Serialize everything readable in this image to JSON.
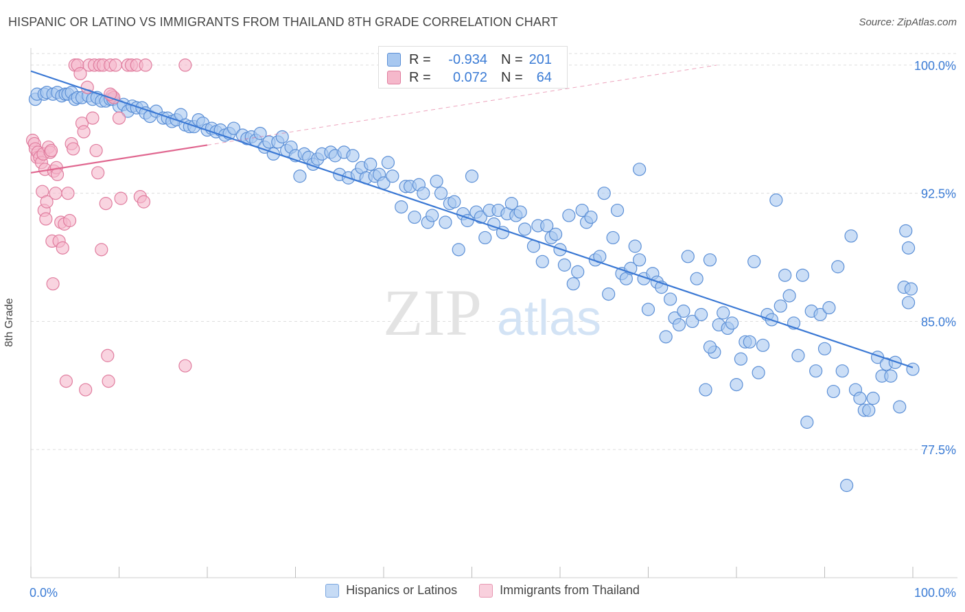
{
  "header": {
    "title": "HISPANIC OR LATINO VS IMMIGRANTS FROM THAILAND 8TH GRADE CORRELATION CHART",
    "source": "Source: ZipAtlas.com"
  },
  "watermark": {
    "zip": "ZIP",
    "atlas": "atlas"
  },
  "stats": {
    "rows": [
      {
        "r_label": "R =",
        "r_value": "-0.934",
        "n_label": "N =",
        "n_value": "201"
      },
      {
        "r_label": "R =",
        "r_value": "0.072",
        "n_label": "N =",
        "n_value": "64"
      }
    ]
  },
  "legend": {
    "items": [
      {
        "label": "Hispanics or Latinos"
      },
      {
        "label": "Immigrants from Thailand"
      }
    ]
  },
  "colors": {
    "blue_fill": "#a8c8f0",
    "blue_stroke": "#5b8fd6",
    "blue_line": "#3a78d4",
    "pink_fill": "#f5b8cb",
    "pink_stroke": "#e07c9e",
    "pink_line": "#e0668f",
    "grid": "#dddddd",
    "tick_label": "#3a7bd5"
  },
  "chart_data": {
    "type": "scatter",
    "title": "HISPANIC OR LATINO VS IMMIGRANTS FROM THAILAND 8TH GRADE CORRELATION CHART",
    "xlabel": "",
    "ylabel": "8th Grade",
    "xlim": [
      0,
      100
    ],
    "ylim": [
      70.0,
      101.0
    ],
    "x_tick_labels": [
      "0.0%",
      "100.0%"
    ],
    "y_ticks": [
      77.5,
      85.0,
      92.5,
      100.0
    ],
    "y_tick_labels": [
      "77.5%",
      "85.0%",
      "92.5%",
      "100.0%"
    ],
    "grid": true,
    "legend_position": "bottom",
    "series": [
      {
        "name": "Hispanics or Latinos",
        "color": "#5b8fd6",
        "trend": {
          "x0": 0,
          "y0": 99.65,
          "x1": 100,
          "y1": 82.3
        },
        "points": [
          [
            0.5,
            98.0
          ],
          [
            0.7,
            98.3
          ],
          [
            1.5,
            98.3
          ],
          [
            1.8,
            98.4
          ],
          [
            2.5,
            98.3
          ],
          [
            3.0,
            98.4
          ],
          [
            3.5,
            98.2
          ],
          [
            3.9,
            98.3
          ],
          [
            4.2,
            98.3
          ],
          [
            4.6,
            98.4
          ],
          [
            5.0,
            98.0
          ],
          [
            5.3,
            98.1
          ],
          [
            5.8,
            98.1
          ],
          [
            6.5,
            98.2
          ],
          [
            7.0,
            98.0
          ],
          [
            7.5,
            98.1
          ],
          [
            8.0,
            97.9
          ],
          [
            8.5,
            97.9
          ],
          [
            9.0,
            98.0
          ],
          [
            9.3,
            98.0
          ],
          [
            10.0,
            97.6
          ],
          [
            10.5,
            97.7
          ],
          [
            11.0,
            97.3
          ],
          [
            11.5,
            97.6
          ],
          [
            12.0,
            97.5
          ],
          [
            12.6,
            97.5
          ],
          [
            13.0,
            97.2
          ],
          [
            13.5,
            97.0
          ],
          [
            14.2,
            97.3
          ],
          [
            15.0,
            96.9
          ],
          [
            15.5,
            96.9
          ],
          [
            16.0,
            96.7
          ],
          [
            16.5,
            96.8
          ],
          [
            17.0,
            97.1
          ],
          [
            17.5,
            96.5
          ],
          [
            18.0,
            96.4
          ],
          [
            18.5,
            96.4
          ],
          [
            19.0,
            96.8
          ],
          [
            19.5,
            96.6
          ],
          [
            20.0,
            96.2
          ],
          [
            20.5,
            96.3
          ],
          [
            21.0,
            96.1
          ],
          [
            21.5,
            96.2
          ],
          [
            22.0,
            95.9
          ],
          [
            22.5,
            96.0
          ],
          [
            23.0,
            96.3
          ],
          [
            24.0,
            95.9
          ],
          [
            24.5,
            95.7
          ],
          [
            25.0,
            95.8
          ],
          [
            25.5,
            95.6
          ],
          [
            26.0,
            96.0
          ],
          [
            26.5,
            95.2
          ],
          [
            27.0,
            95.5
          ],
          [
            27.5,
            94.8
          ],
          [
            28.0,
            95.5
          ],
          [
            28.5,
            95.8
          ],
          [
            29.0,
            95.0
          ],
          [
            29.5,
            95.2
          ],
          [
            30.0,
            94.7
          ],
          [
            30.5,
            93.5
          ],
          [
            31.0,
            94.8
          ],
          [
            31.5,
            94.6
          ],
          [
            32.0,
            94.2
          ],
          [
            32.5,
            94.5
          ],
          [
            33.0,
            94.8
          ],
          [
            34.0,
            94.9
          ],
          [
            34.5,
            94.7
          ],
          [
            35.0,
            93.6
          ],
          [
            35.5,
            94.9
          ],
          [
            36.0,
            93.4
          ],
          [
            36.5,
            94.7
          ],
          [
            37.0,
            93.6
          ],
          [
            37.5,
            94.0
          ],
          [
            38.0,
            93.4
          ],
          [
            38.5,
            94.2
          ],
          [
            39.0,
            93.5
          ],
          [
            39.5,
            93.6
          ],
          [
            40.0,
            93.1
          ],
          [
            40.5,
            94.3
          ],
          [
            41.0,
            93.5
          ],
          [
            42.0,
            91.7
          ],
          [
            42.5,
            92.9
          ],
          [
            43.0,
            92.9
          ],
          [
            43.5,
            91.1
          ],
          [
            44.0,
            93.0
          ],
          [
            44.5,
            92.5
          ],
          [
            45.0,
            90.8
          ],
          [
            45.5,
            91.2
          ],
          [
            46.0,
            93.2
          ],
          [
            46.5,
            92.5
          ],
          [
            47.0,
            90.8
          ],
          [
            47.5,
            91.9
          ],
          [
            48.0,
            92.0
          ],
          [
            48.5,
            89.2
          ],
          [
            49.0,
            91.3
          ],
          [
            49.5,
            90.9
          ],
          [
            50.0,
            93.5
          ],
          [
            50.5,
            91.4
          ],
          [
            51.0,
            91.1
          ],
          [
            51.5,
            89.9
          ],
          [
            52.0,
            91.5
          ],
          [
            52.5,
            90.7
          ],
          [
            53.0,
            91.5
          ],
          [
            53.5,
            90.2
          ],
          [
            54.0,
            91.3
          ],
          [
            54.5,
            91.9
          ],
          [
            55.0,
            91.2
          ],
          [
            55.5,
            91.4
          ],
          [
            56.0,
            90.4
          ],
          [
            57.0,
            89.4
          ],
          [
            57.5,
            90.6
          ],
          [
            58.0,
            88.5
          ],
          [
            58.5,
            90.6
          ],
          [
            59.0,
            89.9
          ],
          [
            59.5,
            90.1
          ],
          [
            60.0,
            89.2
          ],
          [
            60.5,
            88.3
          ],
          [
            61.0,
            91.2
          ],
          [
            61.5,
            87.2
          ],
          [
            62.0,
            87.9
          ],
          [
            62.5,
            91.5
          ],
          [
            63.0,
            90.8
          ],
          [
            63.5,
            91.1
          ],
          [
            64.0,
            88.6
          ],
          [
            64.5,
            88.8
          ],
          [
            65.0,
            92.5
          ],
          [
            65.5,
            86.6
          ],
          [
            66.0,
            89.9
          ],
          [
            66.5,
            91.5
          ],
          [
            67.0,
            87.8
          ],
          [
            67.5,
            87.5
          ],
          [
            68.0,
            88.1
          ],
          [
            68.5,
            89.4
          ],
          [
            69.0,
            88.6
          ],
          [
            69.5,
            87.5
          ],
          [
            70.0,
            85.7
          ],
          [
            70.5,
            87.8
          ],
          [
            71.0,
            87.3
          ],
          [
            71.5,
            87.0
          ],
          [
            72.0,
            84.1
          ],
          [
            72.5,
            86.3
          ],
          [
            73.0,
            85.2
          ],
          [
            73.5,
            84.8
          ],
          [
            74.0,
            85.6
          ],
          [
            74.5,
            88.8
          ],
          [
            75.0,
            85.0
          ],
          [
            75.5,
            87.5
          ],
          [
            76.0,
            85.4
          ],
          [
            76.5,
            81.0
          ],
          [
            77.0,
            88.6
          ],
          [
            77.5,
            83.2
          ],
          [
            78.0,
            84.8
          ],
          [
            78.5,
            85.5
          ],
          [
            79.0,
            84.6
          ],
          [
            79.5,
            84.9
          ],
          [
            80.0,
            81.3
          ],
          [
            80.5,
            82.8
          ],
          [
            81.0,
            83.8
          ],
          [
            81.5,
            83.8
          ],
          [
            82.0,
            88.5
          ],
          [
            82.5,
            82.0
          ],
          [
            83.0,
            83.6
          ],
          [
            83.5,
            85.4
          ],
          [
            84.0,
            85.1
          ],
          [
            84.5,
            92.1
          ],
          [
            85.0,
            85.9
          ],
          [
            85.5,
            87.7
          ],
          [
            86.0,
            86.5
          ],
          [
            86.5,
            84.9
          ],
          [
            87.0,
            83.0
          ],
          [
            87.5,
            87.7
          ],
          [
            88.0,
            79.1
          ],
          [
            88.5,
            85.6
          ],
          [
            89.0,
            82.1
          ],
          [
            89.5,
            85.4
          ],
          [
            90.0,
            83.4
          ],
          [
            90.5,
            85.8
          ],
          [
            91.0,
            80.9
          ],
          [
            91.5,
            88.2
          ],
          [
            92.0,
            82.1
          ],
          [
            92.5,
            75.4
          ],
          [
            93.0,
            90.0
          ],
          [
            93.5,
            81.0
          ],
          [
            94.0,
            80.5
          ],
          [
            94.5,
            79.8
          ],
          [
            95.0,
            79.8
          ],
          [
            95.5,
            80.5
          ],
          [
            96.0,
            82.9
          ],
          [
            96.5,
            81.8
          ],
          [
            97.0,
            82.5
          ],
          [
            97.5,
            81.8
          ],
          [
            98.0,
            82.6
          ],
          [
            98.5,
            80.0
          ],
          [
            99.0,
            87.0
          ],
          [
            99.5,
            86.1
          ],
          [
            100.0,
            82.2
          ],
          [
            99.2,
            90.3
          ],
          [
            99.5,
            89.3
          ],
          [
            99.8,
            86.9
          ],
          [
            77.0,
            83.5
          ],
          [
            69.0,
            93.9
          ]
        ]
      },
      {
        "name": "Immigrants from Thailand",
        "color": "#e07c9e",
        "trend": {
          "x0": 0,
          "y0": 93.7,
          "x1": 100,
          "y1": 101.8,
          "solid_until_x": 20
        },
        "points": [
          [
            0.2,
            95.6
          ],
          [
            0.4,
            95.4
          ],
          [
            0.5,
            95.1
          ],
          [
            0.7,
            94.6
          ],
          [
            0.8,
            94.9
          ],
          [
            1.0,
            94.6
          ],
          [
            1.2,
            94.3
          ],
          [
            1.4,
            94.8
          ],
          [
            1.6,
            93.9
          ],
          [
            1.3,
            92.6
          ],
          [
            1.5,
            91.5
          ],
          [
            1.7,
            91.0
          ],
          [
            1.8,
            92.0
          ],
          [
            2.0,
            95.2
          ],
          [
            2.2,
            94.9
          ],
          [
            2.4,
            89.7
          ],
          [
            2.5,
            87.2
          ],
          [
            2.6,
            93.8
          ],
          [
            2.8,
            92.5
          ],
          [
            2.9,
            94.0
          ],
          [
            3.0,
            93.6
          ],
          [
            3.2,
            89.7
          ],
          [
            3.4,
            90.8
          ],
          [
            3.6,
            89.3
          ],
          [
            3.8,
            90.7
          ],
          [
            4.0,
            81.5
          ],
          [
            4.2,
            92.5
          ],
          [
            4.4,
            90.9
          ],
          [
            4.6,
            95.4
          ],
          [
            4.8,
            95.1
          ],
          [
            5.0,
            100.0
          ],
          [
            5.3,
            100.0
          ],
          [
            5.6,
            99.5
          ],
          [
            5.8,
            96.6
          ],
          [
            6.0,
            96.1
          ],
          [
            6.2,
            81.0
          ],
          [
            6.4,
            98.7
          ],
          [
            6.6,
            100.0
          ],
          [
            7.0,
            96.9
          ],
          [
            7.2,
            100.0
          ],
          [
            7.4,
            95.0
          ],
          [
            7.6,
            93.7
          ],
          [
            7.8,
            100.0
          ],
          [
            8.0,
            89.2
          ],
          [
            8.2,
            100.0
          ],
          [
            8.5,
            91.9
          ],
          [
            8.7,
            83.0
          ],
          [
            8.8,
            81.5
          ],
          [
            9.0,
            100.0
          ],
          [
            9.2,
            98.2
          ],
          [
            9.4,
            98.1
          ],
          [
            9.6,
            100.0
          ],
          [
            10.0,
            96.9
          ],
          [
            10.2,
            92.2
          ],
          [
            11.0,
            100.0
          ],
          [
            11.4,
            100.0
          ],
          [
            12.0,
            100.0
          ],
          [
            12.4,
            92.3
          ],
          [
            12.8,
            92.0
          ],
          [
            13.0,
            100.0
          ],
          [
            17.5,
            100.0
          ],
          [
            17.5,
            82.4
          ],
          [
            9.0,
            98.3
          ],
          [
            2.3,
            95.0
          ]
        ]
      }
    ]
  }
}
